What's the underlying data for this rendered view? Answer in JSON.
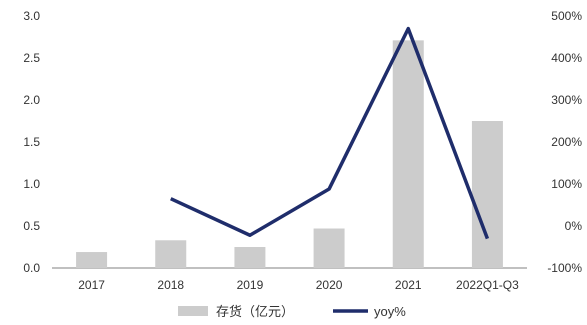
{
  "chart_data": {
    "type": "bar",
    "categories": [
      "2017",
      "2018",
      "2019",
      "2020",
      "2021",
      "2022Q1-Q3"
    ],
    "series": [
      {
        "name": "存货（亿元）",
        "kind": "bar",
        "axis": "left",
        "color": "#cccccc",
        "values": [
          0.19,
          0.33,
          0.25,
          0.47,
          2.71,
          1.75
        ]
      },
      {
        "name": "yoy%",
        "kind": "line",
        "axis": "right",
        "color": "#1f2d6b",
        "values": [
          null,
          65,
          -22,
          88,
          470,
          -30
        ]
      }
    ],
    "left_axis": {
      "ylim": [
        0,
        3.0
      ],
      "ticks": [
        0.0,
        0.5,
        1.0,
        1.5,
        2.0,
        2.5,
        3.0
      ],
      "tick_labels": [
        "0.0",
        "0.5",
        "1.0",
        "1.5",
        "2.0",
        "2.5",
        "3.0"
      ]
    },
    "right_axis": {
      "ylim": [
        -100,
        500
      ],
      "ticks": [
        -100,
        0,
        100,
        200,
        300,
        400,
        500
      ],
      "tick_labels": [
        "-100%",
        "0%",
        "100%",
        "200%",
        "300%",
        "400%",
        "500%"
      ]
    },
    "legend": {
      "placement": "bottom",
      "labels": [
        "存货（亿元）",
        "yoy%"
      ]
    },
    "grid": false,
    "title": "",
    "xlabel": "",
    "ylabel": ""
  }
}
